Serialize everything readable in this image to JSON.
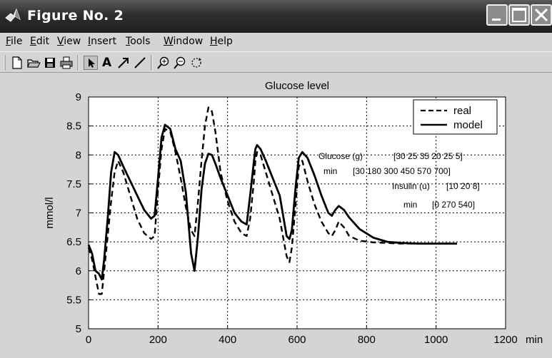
{
  "window": {
    "title": "Figure No. 2",
    "controls": [
      "minimize",
      "maximize",
      "close"
    ]
  },
  "menu": {
    "items": [
      {
        "label": "File",
        "mnemonic": "F",
        "rest": "ile"
      },
      {
        "label": "Edit",
        "mnemonic": "E",
        "rest": "dit"
      },
      {
        "label": "View",
        "mnemonic": "V",
        "rest": "iew"
      },
      {
        "label": "Insert",
        "mnemonic": "I",
        "rest": "nsert"
      },
      {
        "label": "Tools",
        "mnemonic": "T",
        "rest": "ools"
      },
      {
        "label": "Window",
        "mnemonic": "W",
        "rest": "indow"
      },
      {
        "label": "Help",
        "mnemonic": "H",
        "rest": "elp"
      }
    ]
  },
  "toolbar": {
    "icons": [
      "new-file-icon",
      "open-folder-icon",
      "save-icon",
      "print-icon",
      "select-arrow-icon",
      "text-icon",
      "draw-arrow-icon",
      "draw-line-icon",
      "zoom-in-icon",
      "zoom-out-icon",
      "rotate-icon"
    ],
    "text_tool_label": "A"
  },
  "chart_data": {
    "type": "line",
    "title": "Glucose level",
    "xlabel": "min",
    "ylabel": "mmol/l",
    "xlim": [
      0,
      1200
    ],
    "ylim": [
      5,
      9
    ],
    "xticks": [
      0,
      200,
      400,
      600,
      800,
      1000,
      1200
    ],
    "yticks": [
      5,
      5.5,
      6,
      6.5,
      7,
      7.5,
      8,
      8.5,
      9
    ],
    "ytick_labels": [
      "5",
      "5.5",
      "6",
      "6.5",
      "7",
      "7.5",
      "8",
      "8.5",
      "9"
    ],
    "grid": true,
    "grid_style": "dotted",
    "legend_position": "top-right",
    "series": [
      {
        "name": "real",
        "style": "dashed",
        "color": "#000000",
        "x": [
          0,
          10,
          20,
          30,
          38,
          45,
          55,
          65,
          75,
          85,
          100,
          120,
          140,
          160,
          180,
          190,
          200,
          210,
          220,
          235,
          250,
          265,
          280,
          295,
          305,
          315,
          325,
          335,
          345,
          355,
          365,
          380,
          400,
          420,
          440,
          455,
          465,
          475,
          480,
          485,
          495,
          510,
          530,
          550,
          570,
          578,
          585,
          595,
          605,
          615,
          630,
          650,
          670,
          690,
          700,
          710,
          720,
          735,
          750,
          780,
          820,
          860,
          900,
          950,
          1000,
          1060
        ],
        "y": [
          6.4,
          6.2,
          5.9,
          5.6,
          5.6,
          6.0,
          6.6,
          7.2,
          7.7,
          7.9,
          7.7,
          7.3,
          6.9,
          6.65,
          6.55,
          6.6,
          7.4,
          8.1,
          8.45,
          8.4,
          8.05,
          7.6,
          7.1,
          6.7,
          6.6,
          7.2,
          7.9,
          8.5,
          8.82,
          8.75,
          8.4,
          7.7,
          7.2,
          6.85,
          6.65,
          6.6,
          6.9,
          7.5,
          7.9,
          8.05,
          8.0,
          7.7,
          7.3,
          6.9,
          6.25,
          6.15,
          6.4,
          7.1,
          7.8,
          7.9,
          7.55,
          7.15,
          6.85,
          6.65,
          6.6,
          6.7,
          6.85,
          6.75,
          6.6,
          6.52,
          6.49,
          6.48,
          6.47,
          6.47,
          6.47,
          6.47
        ]
      },
      {
        "name": "model",
        "style": "solid",
        "color": "#000000",
        "x": [
          0,
          10,
          20,
          30,
          38,
          45,
          55,
          65,
          75,
          85,
          100,
          120,
          140,
          160,
          180,
          190,
          200,
          210,
          220,
          235,
          250,
          265,
          280,
          295,
          305,
          315,
          325,
          335,
          345,
          355,
          365,
          380,
          400,
          420,
          440,
          455,
          465,
          475,
          480,
          485,
          495,
          510,
          530,
          550,
          570,
          578,
          585,
          595,
          605,
          615,
          630,
          650,
          670,
          690,
          700,
          710,
          720,
          735,
          750,
          780,
          820,
          860,
          900,
          950,
          1000,
          1060
        ],
        "y": [
          6.45,
          6.3,
          6.0,
          5.95,
          5.85,
          6.2,
          6.9,
          7.7,
          8.05,
          8.0,
          7.8,
          7.55,
          7.3,
          7.05,
          6.9,
          6.95,
          7.6,
          8.3,
          8.52,
          8.45,
          8.1,
          7.9,
          7.35,
          6.3,
          6.0,
          6.6,
          7.4,
          7.85,
          8.02,
          8.0,
          7.85,
          7.6,
          7.3,
          7.0,
          6.85,
          6.8,
          7.3,
          7.85,
          8.1,
          8.17,
          8.1,
          7.9,
          7.6,
          7.3,
          6.6,
          6.55,
          6.7,
          7.4,
          7.95,
          8.05,
          7.95,
          7.65,
          7.3,
          7.0,
          6.95,
          7.05,
          7.12,
          7.05,
          6.92,
          6.72,
          6.57,
          6.5,
          6.48,
          6.47,
          6.47,
          6.47
        ]
      }
    ],
    "annotations": [
      {
        "label": "Glucose  (g)",
        "value": "[30 25 35 20 25 5]"
      },
      {
        "label": "min",
        "value": "[30 180 300 450 570 700]"
      },
      {
        "label": "Insulin (u)",
        "value": "[10 20 8]"
      },
      {
        "label": "min",
        "value": "[0 270 540]"
      }
    ]
  }
}
